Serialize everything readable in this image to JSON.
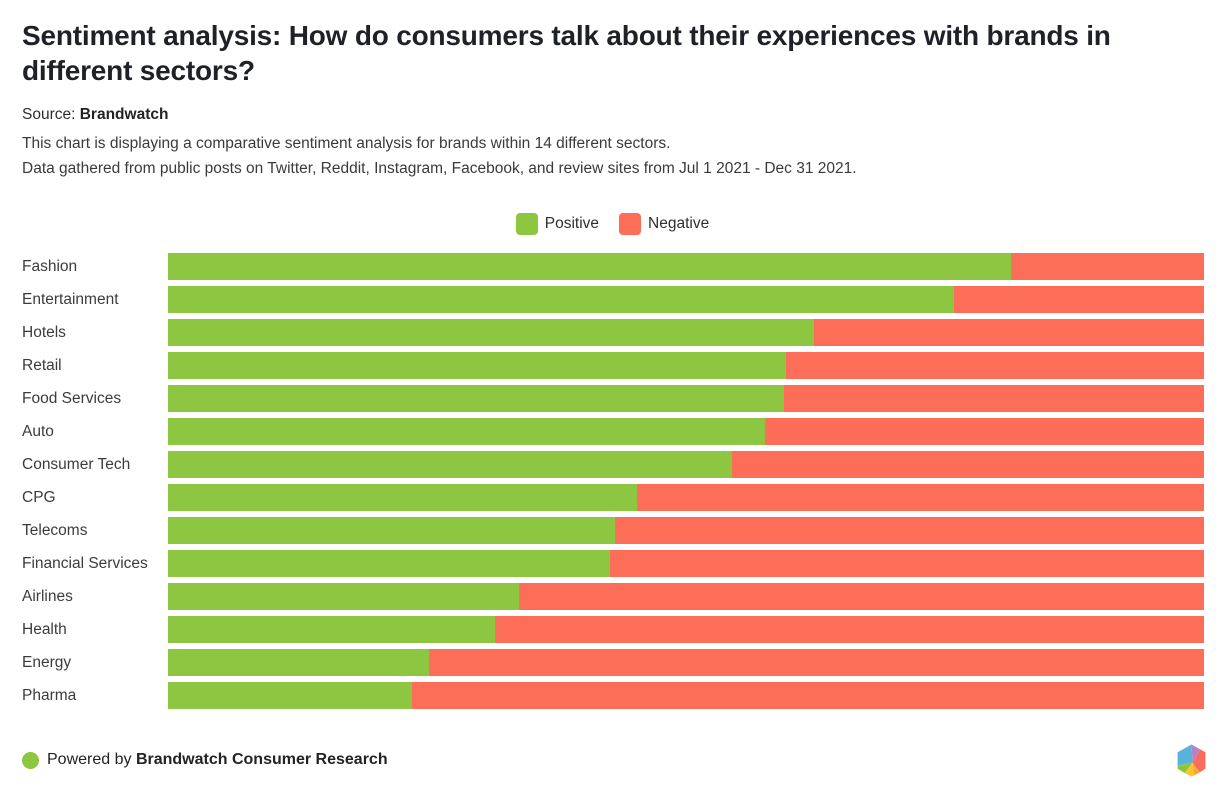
{
  "page": {
    "title": "Sentiment analysis: How do consumers talk about their experiences with brands in different sectors?",
    "source_label": "Source:",
    "source_name": "Brandwatch",
    "description_line1": "This chart is displaying a comparative sentiment analysis for brands within 14 different sectors.",
    "description_line2": "Data gathered from public posts on Twitter, Reddit, Instagram, Facebook, and review sites from Jul 1 2021 - Dec 31 2021."
  },
  "legend": {
    "items": [
      {
        "label": "Positive",
        "color": "#8dc641"
      },
      {
        "label": "Negative",
        "color": "#fc6e58"
      }
    ]
  },
  "chart_data": {
    "type": "bar",
    "orientation": "horizontal",
    "stacked": true,
    "unit": "percent_share",
    "xlim": [
      0,
      100
    ],
    "grid": false,
    "legend_position": "top-center",
    "categories": [
      "Fashion",
      "Entertainment",
      "Hotels",
      "Retail",
      "Food Services",
      "Auto",
      "Consumer Tech",
      "CPG",
      "Telecoms",
      "Financial Services",
      "Airlines",
      "Health",
      "Energy",
      "Pharma"
    ],
    "series": [
      {
        "name": "Positive",
        "color": "#8dc641",
        "values": [
          81.4,
          75.9,
          62.4,
          59.7,
          59.5,
          57.6,
          54.4,
          45.3,
          43.1,
          42.7,
          33.9,
          31.6,
          25.2,
          23.6
        ]
      },
      {
        "name": "Negative",
        "color": "#fc6e58",
        "values": [
          18.6,
          24.1,
          37.6,
          40.3,
          40.5,
          42.4,
          45.6,
          54.7,
          56.9,
          57.3,
          66.1,
          68.4,
          74.8,
          76.4
        ]
      }
    ]
  },
  "footer": {
    "powered_by_prefix": "Powered by",
    "powered_by_name": "Brandwatch Consumer Research",
    "dot_color": "#8dc641"
  },
  "logo": {
    "name": "brandwatch-logo",
    "colors": {
      "blue": "#56b3dc",
      "purple": "#b483c6",
      "red": "#f96b5c",
      "orange": "#faa43c",
      "yellow": "#fcc32d",
      "green": "#8cc641"
    }
  }
}
